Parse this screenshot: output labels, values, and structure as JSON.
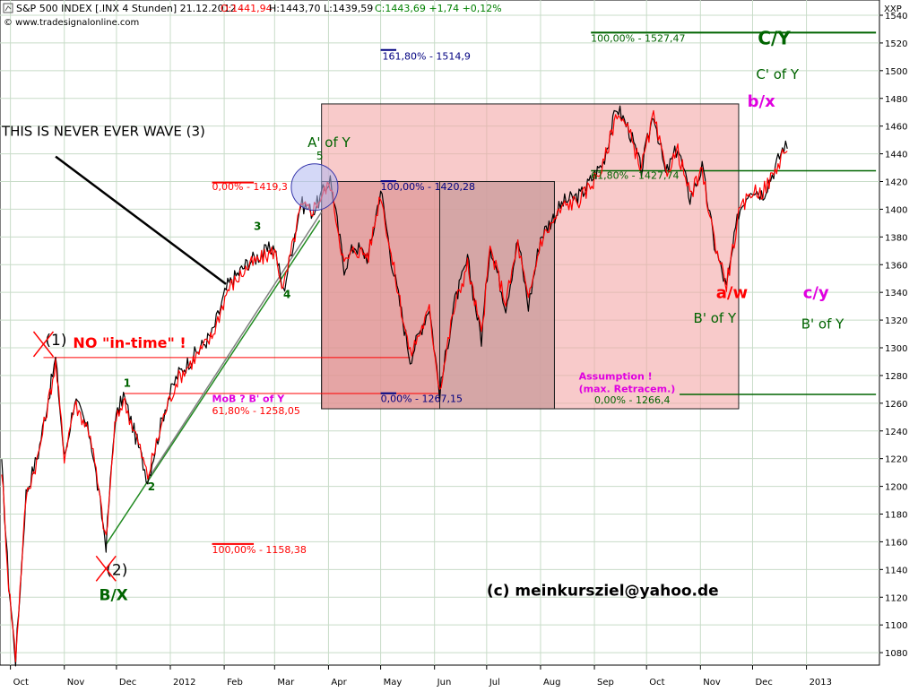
{
  "header": {
    "title": "S&P 500 INDEX [.INX  4 Stunden] 21.12.2012 -",
    "ohlc_open": "O:1441,94",
    "ohlc_hlc": "H:1443,70 L:1439,59",
    "ohlc_change": "C:1443,69 +1,74 +0,12%",
    "copyright": "© www.tradesignalonline.com",
    "axis_code": "XXP"
  },
  "chart_data": {
    "type": "line",
    "x_ticks": [
      "Oct",
      "Nov",
      "Dec",
      "2012",
      "Feb",
      "Mar",
      "Apr",
      "May",
      "Jun",
      "Jul",
      "Aug",
      "Sep",
      "Oct",
      "Nov",
      "Dec",
      "2013"
    ],
    "y_ticks": [
      1080,
      1100,
      1120,
      1140,
      1160,
      1180,
      1200,
      1220,
      1240,
      1260,
      1280,
      1300,
      1320,
      1340,
      1360,
      1380,
      1400,
      1420,
      1440,
      1460,
      1480,
      1500,
      1520,
      1540
    ],
    "ylim": [
      1071,
      1551
    ],
    "grid": true,
    "series": [
      {
        "color": "#000000",
        "points": [
          [
            "2011-09-26",
            1215
          ],
          [
            "2011-09-30",
            1131
          ],
          [
            "2011-10-04",
            1075
          ],
          [
            "2011-10-10",
            1195
          ],
          [
            "2011-10-17",
            1224
          ],
          [
            "2011-10-27",
            1292
          ],
          [
            "2011-11-01",
            1220
          ],
          [
            "2011-11-07",
            1263
          ],
          [
            "2011-11-16",
            1236
          ],
          [
            "2011-11-25",
            1158
          ],
          [
            "2011-11-30",
            1246
          ],
          [
            "2011-12-05",
            1266
          ],
          [
            "2011-12-12",
            1236
          ],
          [
            "2011-12-19",
            1205
          ],
          [
            "2011-12-29",
            1257
          ],
          [
            "2012-01-05",
            1280
          ],
          [
            "2012-01-25",
            1310
          ],
          [
            "2012-02-03",
            1345
          ],
          [
            "2012-02-15",
            1362
          ],
          [
            "2012-03-01",
            1373
          ],
          [
            "2012-03-06",
            1340
          ],
          [
            "2012-03-16",
            1404
          ],
          [
            "2012-03-23",
            1398
          ],
          [
            "2012-04-02",
            1422
          ],
          [
            "2012-04-10",
            1358
          ],
          [
            "2012-04-16",
            1374
          ],
          [
            "2012-04-24",
            1365
          ],
          [
            "2012-05-01",
            1415
          ],
          [
            "2012-05-07",
            1365
          ],
          [
            "2012-05-18",
            1292
          ],
          [
            "2012-05-29",
            1330
          ],
          [
            "2012-06-04",
            1267
          ],
          [
            "2012-06-12",
            1330
          ],
          [
            "2012-06-20",
            1363
          ],
          [
            "2012-06-28",
            1306
          ],
          [
            "2012-07-03",
            1375
          ],
          [
            "2012-07-12",
            1330
          ],
          [
            "2012-07-19",
            1378
          ],
          [
            "2012-07-25",
            1330
          ],
          [
            "2012-08-01",
            1380
          ],
          [
            "2012-08-14",
            1405
          ],
          [
            "2012-08-24",
            1410
          ],
          [
            "2012-09-06",
            1434
          ],
          [
            "2012-09-14",
            1474
          ],
          [
            "2012-09-21",
            1457
          ],
          [
            "2012-09-28",
            1428
          ],
          [
            "2012-10-05",
            1470
          ],
          [
            "2012-10-12",
            1425
          ],
          [
            "2012-10-19",
            1445
          ],
          [
            "2012-10-26",
            1408
          ],
          [
            "2012-11-02",
            1430
          ],
          [
            "2012-11-09",
            1375
          ],
          [
            "2012-11-16",
            1343
          ],
          [
            "2012-11-23",
            1398
          ],
          [
            "2012-11-30",
            1416
          ],
          [
            "2012-12-07",
            1411
          ],
          [
            "2012-12-14",
            1430
          ],
          [
            "2012-12-19",
            1446
          ],
          [
            "2012-12-21",
            1443.69
          ]
        ]
      },
      {
        "color": "#ff0000",
        "points": [
          [
            "2011-09-26",
            1213
          ],
          [
            "2011-09-30",
            1129
          ],
          [
            "2011-10-04",
            1077
          ],
          [
            "2011-10-10",
            1193
          ],
          [
            "2011-10-17",
            1222
          ],
          [
            "2011-10-27",
            1289
          ],
          [
            "2011-11-01",
            1222
          ],
          [
            "2011-11-07",
            1260
          ],
          [
            "2011-11-16",
            1238
          ],
          [
            "2011-11-25",
            1160
          ],
          [
            "2011-11-30",
            1243
          ],
          [
            "2011-12-05",
            1263
          ],
          [
            "2011-12-12",
            1238
          ],
          [
            "2011-12-19",
            1207
          ],
          [
            "2011-12-29",
            1254
          ],
          [
            "2012-01-05",
            1277
          ],
          [
            "2012-01-25",
            1308
          ],
          [
            "2012-02-03",
            1342
          ],
          [
            "2012-02-15",
            1359
          ],
          [
            "2012-03-01",
            1370
          ],
          [
            "2012-03-06",
            1342
          ],
          [
            "2012-03-16",
            1401
          ],
          [
            "2012-03-23",
            1400
          ],
          [
            "2012-04-02",
            1419
          ],
          [
            "2012-04-10",
            1360
          ],
          [
            "2012-04-16",
            1371
          ],
          [
            "2012-04-24",
            1367
          ],
          [
            "2012-05-01",
            1412
          ],
          [
            "2012-05-07",
            1367
          ],
          [
            "2012-05-18",
            1295
          ],
          [
            "2012-05-29",
            1327
          ],
          [
            "2012-06-04",
            1270
          ],
          [
            "2012-06-12",
            1327
          ],
          [
            "2012-06-20",
            1360
          ],
          [
            "2012-06-28",
            1309
          ],
          [
            "2012-07-03",
            1372
          ],
          [
            "2012-07-12",
            1333
          ],
          [
            "2012-07-19",
            1375
          ],
          [
            "2012-07-25",
            1333
          ],
          [
            "2012-08-01",
            1377
          ],
          [
            "2012-08-14",
            1402
          ],
          [
            "2012-08-24",
            1407
          ],
          [
            "2012-09-06",
            1431
          ],
          [
            "2012-09-14",
            1471
          ],
          [
            "2012-09-21",
            1455
          ],
          [
            "2012-09-28",
            1430
          ],
          [
            "2012-10-05",
            1467
          ],
          [
            "2012-10-12",
            1427
          ],
          [
            "2012-10-19",
            1442
          ],
          [
            "2012-10-26",
            1410
          ],
          [
            "2012-11-02",
            1427
          ],
          [
            "2012-11-09",
            1378
          ],
          [
            "2012-11-16",
            1346
          ],
          [
            "2012-11-23",
            1395
          ],
          [
            "2012-11-30",
            1413
          ],
          [
            "2012-12-07",
            1413
          ],
          [
            "2012-12-14",
            1427
          ],
          [
            "2012-12-19",
            1443
          ],
          [
            "2012-12-21",
            1441.94
          ]
        ]
      }
    ],
    "boxes": [
      {
        "x0": "2012-03-28",
        "x1": "2012-11-23",
        "y0": 1256,
        "y1": 1476,
        "fill": "#f4a6a6"
      },
      {
        "x0": "2012-03-28",
        "x1": "2012-08-09",
        "y0": 1256,
        "y1": 1420,
        "fill": "#d98c8c"
      },
      {
        "x0": "2012-06-04",
        "x1": "2012-08-09",
        "y0": 1256,
        "y1": 1420,
        "fill": "#c9a6a6"
      }
    ],
    "hlines": [
      {
        "x0": "2012-08-30",
        "x1": "2013-02-10",
        "y": 1527.47,
        "color": "#006400",
        "width": 2
      },
      {
        "x0": "2012-08-30",
        "x1": "2013-02-10",
        "y": 1427.74,
        "color": "#006400",
        "width": 1.5
      },
      {
        "x0": "2012-10-20",
        "x1": "2013-02-10",
        "y": 1266.4,
        "color": "#006400",
        "width": 1.5
      },
      {
        "x0": "2011-10-20",
        "x1": "2012-05-18",
        "y": 1293,
        "color": "#ff0000",
        "width": 1
      },
      {
        "x0": "2011-12-05",
        "x1": "2012-06-04",
        "y": 1267,
        "color": "#ff0000",
        "width": 1
      },
      {
        "x0": "2012-01-25",
        "x1": "2012-02-18",
        "y": 1419.3,
        "color": "#ff0000",
        "width": 2
      },
      {
        "x0": "2012-01-25",
        "x1": "2012-02-18",
        "y": 1158.38,
        "color": "#ff0000",
        "width": 2
      },
      {
        "x0": "2012-05-01",
        "x1": "2012-05-10",
        "y": 1514.9,
        "color": "#000080",
        "width": 2
      },
      {
        "x0": "2012-05-01",
        "x1": "2012-05-10",
        "y": 1420.28,
        "color": "#000080",
        "width": 2
      },
      {
        "x0": "2012-05-01",
        "x1": "2012-05-10",
        "y": 1267.15,
        "color": "#000080",
        "width": 2
      }
    ],
    "trendlines": [
      {
        "x0": "2011-11-25",
        "y0": 1158,
        "x1": "2012-03-27",
        "y1": 1392,
        "color": "#228b22",
        "width": 1.5
      },
      {
        "x0": "2011-12-19",
        "x1": "2012-03-28",
        "y0": 1205,
        "y1": 1398,
        "color": "#808080",
        "width": 1.5
      },
      {
        "x0": "2011-10-27",
        "x1": "2012-02-02",
        "y0": 1438,
        "y1": 1346,
        "color": "#000000",
        "width": 2.5
      }
    ],
    "circle": {
      "x": "2012-03-24",
      "y": 1416,
      "color": "#3333aa",
      "fill": "#b0b8f0"
    },
    "annotations": [
      {
        "text": "161,80% - 1514,9",
        "x": "2012-05-02",
        "y": 1508,
        "color": "#000080",
        "size": 11
      },
      {
        "text": "100,00% - 1527,47",
        "x": "2012-08-30",
        "y": 1521,
        "color": "#006400",
        "size": 11
      },
      {
        "text": "C/Y",
        "x": "2012-12-04",
        "y": 1519,
        "color": "#006400",
        "size": 20,
        "bold": true
      },
      {
        "text": "C' of Y",
        "x": "2012-12-03",
        "y": 1494,
        "color": "#006400",
        "size": 15
      },
      {
        "text": "b/x",
        "x": "2012-11-28",
        "y": 1474,
        "color": "#e000e0",
        "size": 18,
        "bold": true
      },
      {
        "text": "THIS IS NEVER EVER  WAVE (3)",
        "x": "2011-09-26",
        "y": 1453,
        "color": "#000000",
        "size": 15
      },
      {
        "text": "A' of Y",
        "x": "2012-03-20",
        "y": 1445,
        "color": "#006400",
        "size": 15
      },
      {
        "text": "5",
        "x": "2012-03-25",
        "y": 1436,
        "color": "#006400",
        "size": 12
      },
      {
        "text": "0,00% - 1419,3",
        "x": "2012-01-25",
        "y": 1414,
        "color": "#ff0000",
        "size": 11
      },
      {
        "text": "100,00% - 1420,28",
        "x": "2012-05-01",
        "y": 1414,
        "color": "#000080",
        "size": 11
      },
      {
        "text": "61,80% - 1427,74",
        "x": "2012-08-30",
        "y": 1422,
        "color": "#006400",
        "size": 11
      },
      {
        "text": "3",
        "x": "2012-02-18",
        "y": 1385,
        "color": "#006400",
        "size": 12,
        "bold": true
      },
      {
        "text": "4",
        "x": "2012-03-06",
        "y": 1336,
        "color": "#006400",
        "size": 12,
        "bold": true
      },
      {
        "text": "a/w",
        "x": "2012-11-10",
        "y": 1336,
        "color": "#ff0000",
        "size": 18,
        "bold": true
      },
      {
        "text": "c/y",
        "x": "2012-12-30",
        "y": 1336,
        "color": "#e000e0",
        "size": 18,
        "bold": true
      },
      {
        "text": "(1)",
        "x": "2011-10-21",
        "y": 1302,
        "color": "#000000",
        "size": 17
      },
      {
        "text": "NO \"in-time\" !",
        "x": "2011-11-06",
        "y": 1300,
        "color": "#ff0000",
        "size": 16,
        "bold": true
      },
      {
        "text": "B' of Y",
        "x": "2012-10-28",
        "y": 1318,
        "color": "#006400",
        "size": 15
      },
      {
        "text": "B' of Y",
        "x": "2012-12-29",
        "y": 1314,
        "color": "#006400",
        "size": 15
      },
      {
        "text": "Assumption !",
        "x": "2012-08-23",
        "y": 1277,
        "color": "#e000e0",
        "size": 11,
        "bold": true
      },
      {
        "text": "(max. Retracem.)",
        "x": "2012-08-23",
        "y": 1268,
        "color": "#e000e0",
        "size": 11,
        "bold": true
      },
      {
        "text": "1",
        "x": "2011-12-05",
        "y": 1272,
        "color": "#006400",
        "size": 12,
        "bold": true
      },
      {
        "text": "MoB ? B' of Y",
        "x": "2012-01-25",
        "y": 1261,
        "color": "#e000e0",
        "size": 11,
        "bold": true
      },
      {
        "text": "0,00% - 1267,15",
        "x": "2012-05-01",
        "y": 1261,
        "color": "#000080",
        "size": 11
      },
      {
        "text": "0,00% - 1266,4",
        "x": "2012-09-01",
        "y": 1260,
        "color": "#006400",
        "size": 11
      },
      {
        "text": "61,80% - 1258,05",
        "x": "2012-01-25",
        "y": 1252,
        "color": "#ff0000",
        "size": 11
      },
      {
        "text": "2",
        "x": "2011-12-19",
        "y": 1197,
        "color": "#006400",
        "size": 12,
        "bold": true
      },
      {
        "text": "100,00% - 1158,38",
        "x": "2012-01-25",
        "y": 1152,
        "color": "#ff0000",
        "size": 11
      },
      {
        "text": "(2)",
        "x": "2011-11-25",
        "y": 1136,
        "color": "#000000",
        "size": 17
      },
      {
        "text": "B/X",
        "x": "2011-11-21",
        "y": 1118,
        "color": "#006400",
        "size": 17,
        "bold": true
      },
      {
        "text": "(c) meinkursziel@yahoo.de",
        "x": "2012-07-01",
        "y": 1121,
        "color": "#000000",
        "size": 17,
        "bold": true
      }
    ],
    "x_markers": [
      {
        "date": "2011-10-20",
        "y": 1302,
        "color": "#ff0000"
      },
      {
        "date": "2011-11-25",
        "y": 1140,
        "color": "#ff0000"
      }
    ]
  }
}
